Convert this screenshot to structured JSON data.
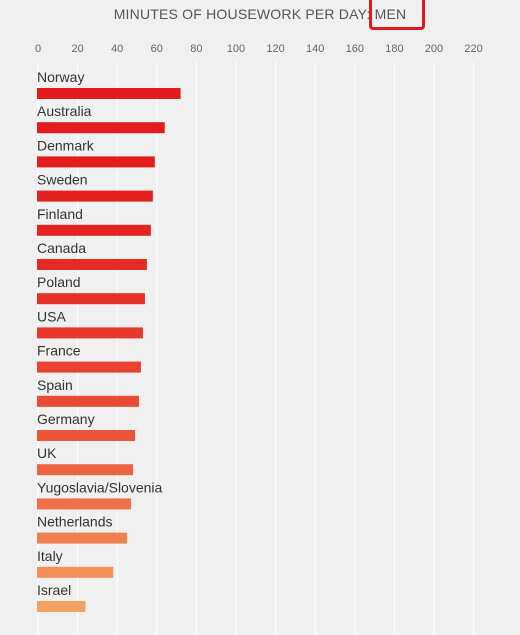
{
  "header": {
    "title_prefix": "MINUTES OF HOUSEWORK PER DAY: ",
    "title_highlight": "MEN"
  },
  "chart_data": {
    "type": "bar",
    "orientation": "horizontal",
    "title": "MINUTES OF HOUSEWORK PER DAY: MEN",
    "xlim": [
      0,
      220
    ],
    "ticks": [
      0,
      20,
      40,
      60,
      80,
      100,
      120,
      140,
      160,
      180,
      200,
      220
    ],
    "grid": true,
    "categories": [
      "Norway",
      "Australia",
      "Denmark",
      "Sweden",
      "Finland",
      "Canada",
      "Poland",
      "USA",
      "France",
      "Spain",
      "Germany",
      "UK",
      "Yugoslavia/Slovenia",
      "Netherlands",
      "Italy",
      "Israel"
    ],
    "values": [
      72,
      64,
      59,
      58,
      57,
      55,
      54,
      53,
      52,
      51,
      49,
      48,
      47,
      45,
      38,
      24
    ],
    "colors": {
      "top": "#e31a1c",
      "bottom": "#f4a261",
      "accent": "#e31a1c"
    }
  }
}
